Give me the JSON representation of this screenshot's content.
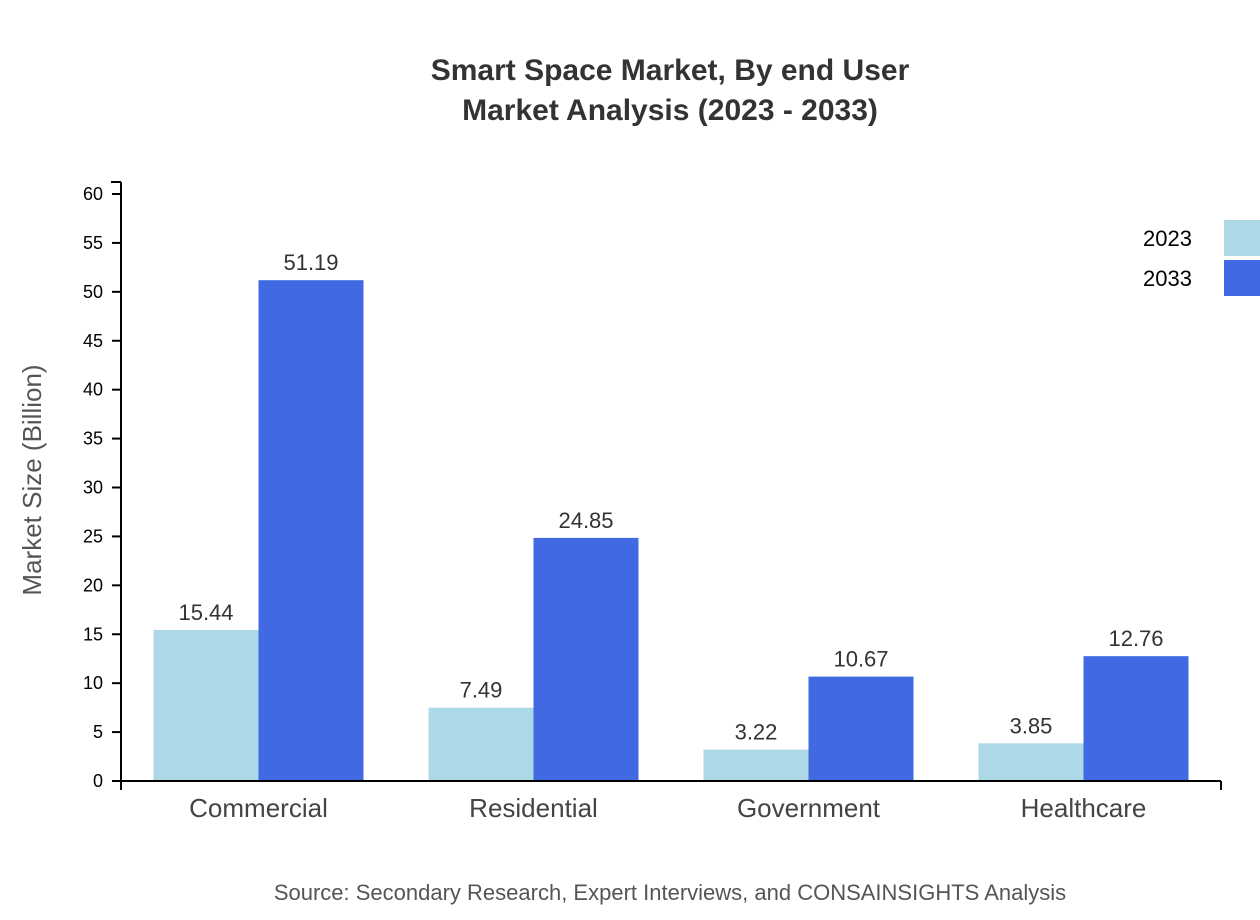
{
  "chart_data": {
    "type": "bar",
    "title": "Smart Space Market, By end User",
    "subtitle": "Market Analysis (2023 - 2033)",
    "xlabel": "",
    "ylabel": "Market Size (Billion)",
    "ylim": [
      0,
      60
    ],
    "yticks": [
      0,
      5,
      10,
      15,
      20,
      25,
      30,
      35,
      40,
      45,
      50,
      55,
      60
    ],
    "categories": [
      "Commercial",
      "Residential",
      "Government",
      "Healthcare"
    ],
    "series": [
      {
        "name": "2023",
        "color": "#add8e6",
        "values": [
          15.44,
          7.49,
          3.22,
          3.85
        ]
      },
      {
        "name": "2033",
        "color": "#4169e1",
        "values": [
          51.19,
          24.85,
          10.67,
          12.76
        ]
      }
    ],
    "grid": false,
    "legend_position": "top-right",
    "source": "Source: Secondary Research, Expert Interviews, and CONSAINSIGHTS Analysis"
  }
}
